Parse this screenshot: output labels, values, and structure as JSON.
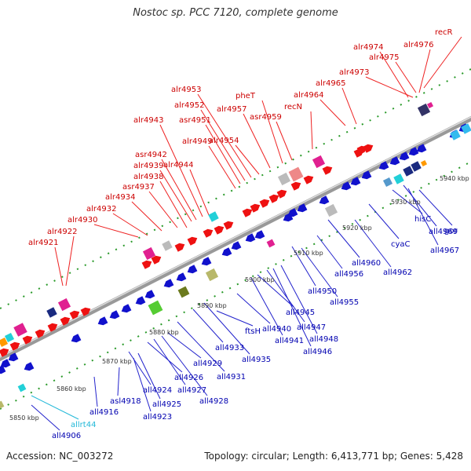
{
  "title": "Nostoc sp. PCC 7120, complete genome",
  "accession": "Accession: NC_003272",
  "summary": "Topology: circular; Length: 6,413,771 bp; Genes: 5,428",
  "colors": {
    "top_strand": "#ee1111",
    "bottom_strand": "#1111cc",
    "rna": "#22b8d8",
    "ticks": "#118811",
    "backbone": "#999999"
  },
  "kbp_ticks": [
    "5850 kbp",
    "5860 kbp",
    "5870 kbp",
    "5880 kbp",
    "5890 kbp",
    "5900 kbp",
    "5910 kbp",
    "5920 kbp",
    "5930 kbp",
    "5940 kbp"
  ],
  "top_labels": [
    "alr4921",
    "alr4922",
    "alr4930",
    "alr4932",
    "alr4934",
    "asr4937",
    "alr4938",
    "alr4939",
    "asr4942",
    "alr4943",
    "alr4944",
    "alr4949",
    "asr4951",
    "alr4952",
    "alr4953",
    "alr4954",
    "alr4957",
    "pheT",
    "asr4959",
    "recN",
    "alr4964",
    "alr4965",
    "alr4973",
    "alr4974",
    "alr4975",
    "alr4976",
    "recR"
  ],
  "bottom_labels": [
    "all4906",
    "allrt44",
    "all4916",
    "asl4918",
    "all4923",
    "all4924",
    "all4925",
    "all4926",
    "all4927",
    "all4928",
    "all4929",
    "all4931",
    "all4933",
    "all4935",
    "ftsH",
    "all4940",
    "all4941",
    "all4945",
    "all4947",
    "all4948",
    "all4946",
    "all4950",
    "all4955",
    "all4956",
    "all4960",
    "all4962",
    "cyaC",
    "hisC",
    "all4967",
    "all4969",
    "gor"
  ]
}
